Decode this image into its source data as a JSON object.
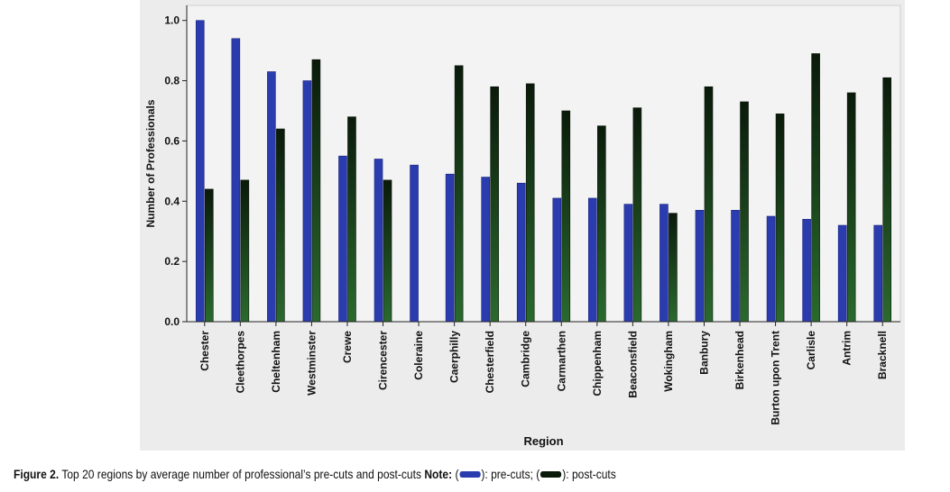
{
  "colors": {
    "pre": "#2b3cae",
    "post_top": "#0a1a0a",
    "post_bottom": "#2a6a2e",
    "plot_bg": "#f3f3f3",
    "figure_bg": "#ececec"
  },
  "chart_data": {
    "type": "bar",
    "xlabel": "Region",
    "ylabel": "Number of Professionals",
    "ylim": [
      0.0,
      1.05
    ],
    "yticks": [
      "0.0",
      "0.2",
      "0.4",
      "0.6",
      "0.8",
      "1.0"
    ],
    "legend": "none",
    "categories": [
      "Chester",
      "Cleethorpes",
      "Cheltenham",
      "Westminster",
      "Crewe",
      "Cirencester",
      "Coleraine",
      "Caerphilly",
      "Chesterfield",
      "Cambridge",
      "Carmarthen",
      "Chippenham",
      "Beaconsfield",
      "Wokingham",
      "Banbury",
      "Birkenhead",
      "Burton upon Trent",
      "Carlisle",
      "Antrim",
      "Bracknell"
    ],
    "series": [
      {
        "key": "pre",
        "values": [
          1.0,
          0.94,
          0.83,
          0.8,
          0.55,
          0.54,
          0.52,
          0.49,
          0.48,
          0.46,
          0.41,
          0.41,
          0.39,
          0.39,
          0.37,
          0.37,
          0.35,
          0.34,
          0.32,
          0.32
        ]
      },
      {
        "key": "post",
        "values": [
          0.44,
          0.47,
          0.64,
          0.87,
          0.68,
          0.47,
          null,
          0.85,
          0.78,
          0.79,
          0.7,
          0.65,
          0.71,
          0.36,
          0.78,
          0.73,
          0.69,
          0.89,
          0.76,
          0.81
        ]
      }
    ]
  },
  "caption": {
    "figure_label": "Figure 2.",
    "text": " Top 20 regions by average number of professional’s pre-cuts and post-cuts ",
    "note_label": "Note:",
    "open1": " (",
    "pre_text": "): pre-cuts; (",
    "post_text": "): post-cuts"
  }
}
